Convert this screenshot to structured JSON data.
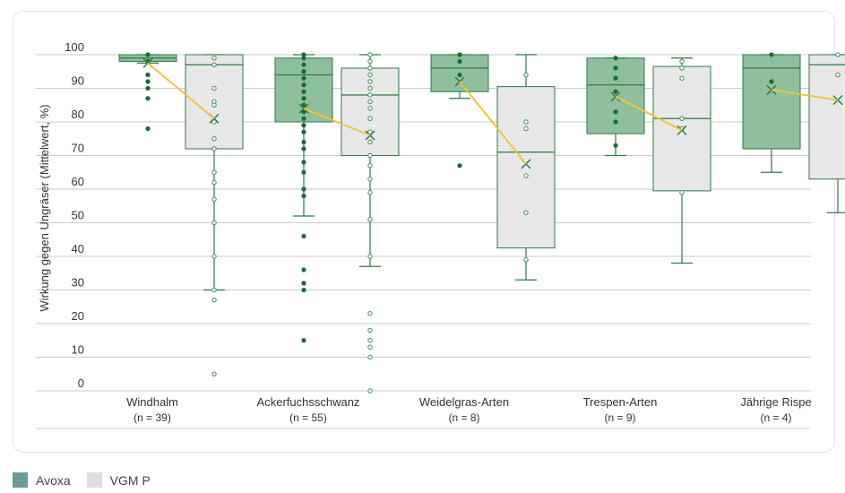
{
  "chart_data": {
    "type": "box",
    "ylabel": "Wirkung gegen Ungräser (Mittelwert, %)",
    "ylim": [
      0,
      100
    ],
    "yticks": [
      0,
      10,
      20,
      30,
      40,
      50,
      60,
      70,
      80,
      90,
      100
    ],
    "categories": [
      {
        "label": "Windhalm",
        "n": "(n = 39)"
      },
      {
        "label": "Ackerfuchsschwanz",
        "n": "(n = 55)"
      },
      {
        "label": "Weidelgras-Arten",
        "n": "(n = 8)"
      },
      {
        "label": "Trespen-Arten",
        "n": "(n = 9)"
      },
      {
        "label": "Jährige Rispe",
        "n": "(n = 4)"
      }
    ],
    "series": [
      {
        "name": "Avoxa",
        "color": "#8fbf9c",
        "boxes": [
          {
            "min": 97.5,
            "q1": 98,
            "median": 99,
            "q3": 100,
            "max": 100,
            "mean": 97.5,
            "points": [
              100,
              98,
              94,
              92,
              90,
              87,
              78
            ]
          },
          {
            "min": 52,
            "q1": 80,
            "median": 94,
            "q3": 99,
            "max": 100,
            "mean": 84,
            "points": [
              100,
              99,
              97,
              95,
              93,
              91,
              89,
              87,
              85,
              83,
              81,
              79,
              77,
              74,
              72,
              68,
              65,
              60,
              58,
              46,
              36,
              32,
              30,
              15
            ]
          },
          {
            "min": 87,
            "q1": 89,
            "median": 96,
            "q3": 100,
            "max": 100,
            "mean": 92,
            "points": [
              100,
              98,
              94,
              67
            ]
          },
          {
            "min": 70,
            "q1": 76.5,
            "median": 91,
            "q3": 99,
            "max": 99,
            "mean": 87.5,
            "points": [
              99,
              96,
              93,
              89,
              83,
              80,
              73
            ]
          },
          {
            "min": 65,
            "q1": 72,
            "median": 96,
            "q3": 100,
            "max": 100,
            "mean": 89.5,
            "points": [
              100,
              92
            ]
          }
        ]
      },
      {
        "name": "VGM P",
        "color": "#e8e8e8",
        "boxes": [
          {
            "min": 30,
            "q1": 72,
            "median": 97,
            "q3": 100,
            "max": 100,
            "mean": 81,
            "points": [
              99,
              97,
              90,
              86,
              85,
              80,
              75,
              72,
              65,
              62,
              57,
              50,
              40,
              30,
              27,
              5
            ]
          },
          {
            "min": 37,
            "q1": 70,
            "median": 88,
            "q3": 96,
            "max": 100,
            "mean": 76,
            "points": [
              100,
              98,
              96,
              94,
              92,
              90,
              88,
              86,
              84,
              81,
              77,
              74,
              70,
              67,
              63,
              59,
              51,
              40,
              23,
              18,
              15,
              13,
              10,
              0
            ]
          },
          {
            "min": 33,
            "q1": 42.5,
            "median": 71,
            "q3": 90.5,
            "max": 100,
            "mean": 67.5,
            "points": [
              94,
              80,
              78,
              64,
              53,
              39
            ]
          },
          {
            "min": 38,
            "q1": 59.5,
            "median": 81,
            "q3": 96.5,
            "max": 99,
            "mean": 77.5,
            "points": [
              98,
              96,
              93,
              81,
              78,
              59
            ]
          },
          {
            "min": 53,
            "q1": 63,
            "median": 97,
            "q3": 100,
            "max": 100,
            "mean": 86.5,
            "points": [
              100,
              94
            ]
          }
        ]
      }
    ],
    "legend": {
      "position": "bottom-left"
    }
  }
}
